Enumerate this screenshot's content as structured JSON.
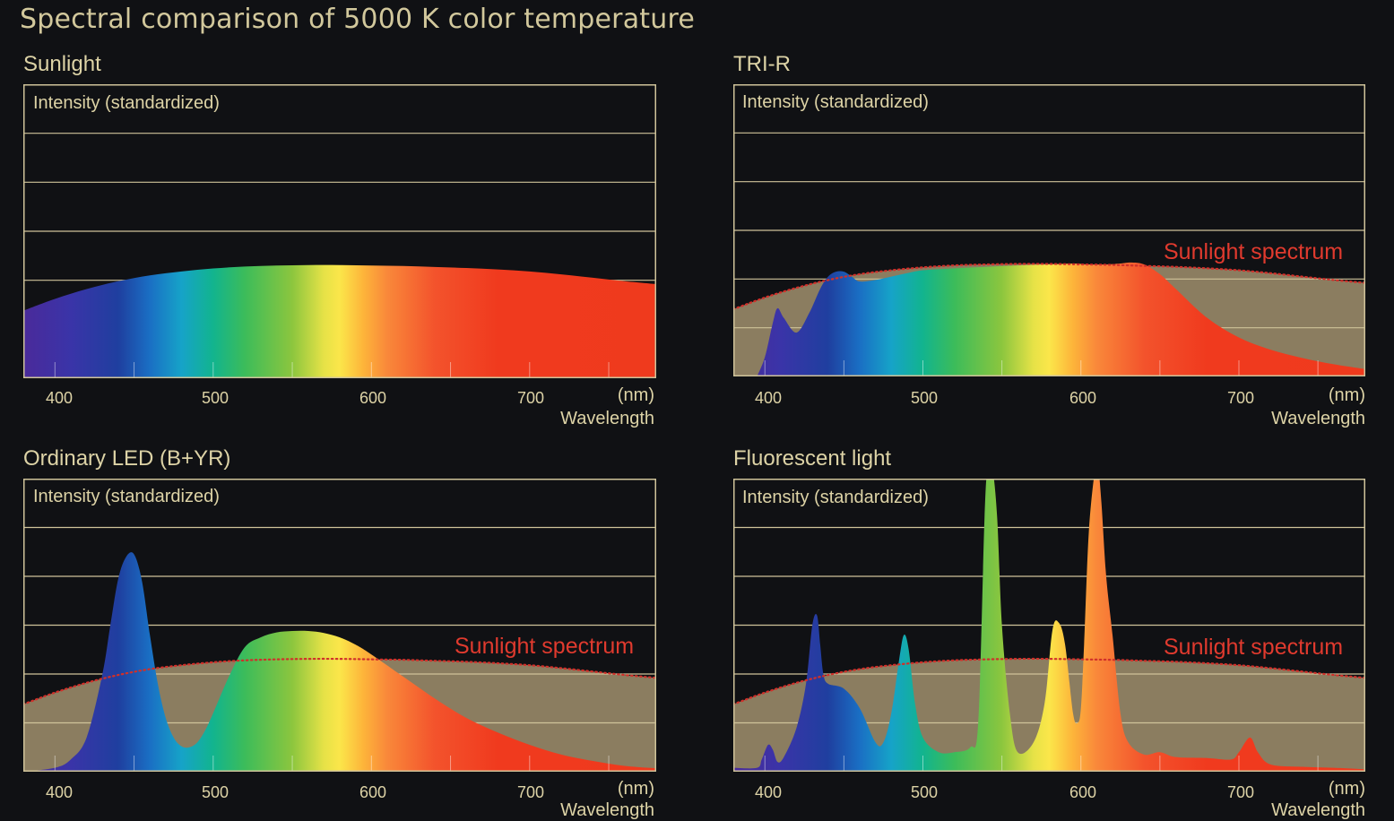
{
  "title": "Spectral comparison of 5000 K color temperature",
  "colors": {
    "background": "#101114",
    "text": "#ddd3a6",
    "frame": "#cfc39a",
    "sunlight_fill": "#8b7d60",
    "reference_line": "#d0302a",
    "reference_label": "#e03a2e"
  },
  "chart_data": [
    {
      "type": "area",
      "title": "Sunlight",
      "ylabel": "Intensity (standardized)",
      "xlabel": "Wavelength",
      "xunit": "(nm)",
      "xlim": [
        380,
        780
      ],
      "ylim": [
        0,
        6
      ],
      "xticks": [
        400,
        500,
        600,
        700
      ],
      "grid": true,
      "fill": "spectral",
      "x": [
        380,
        400,
        420,
        440,
        460,
        480,
        500,
        520,
        540,
        560,
        580,
        600,
        620,
        640,
        660,
        680,
        700,
        720,
        740,
        760,
        780
      ],
      "y": [
        1.38,
        1.62,
        1.82,
        1.98,
        2.1,
        2.18,
        2.24,
        2.28,
        2.3,
        2.31,
        2.31,
        2.3,
        2.29,
        2.27,
        2.25,
        2.22,
        2.18,
        2.12,
        2.05,
        1.98,
        1.92
      ]
    },
    {
      "type": "area",
      "title": "TRI-R",
      "ylabel": "Intensity (standardized)",
      "xlabel": "Wavelength",
      "xunit": "(nm)",
      "xlim": [
        380,
        780
      ],
      "ylim": [
        0,
        6
      ],
      "xticks": [
        400,
        500,
        600,
        700
      ],
      "grid": true,
      "fill": "spectral",
      "reference": {
        "name": "Sunlight spectrum",
        "x": [
          380,
          400,
          420,
          440,
          460,
          480,
          500,
          520,
          540,
          560,
          580,
          600,
          620,
          640,
          660,
          680,
          700,
          720,
          740,
          760,
          780
        ],
        "y": [
          1.38,
          1.62,
          1.82,
          1.98,
          2.1,
          2.18,
          2.24,
          2.28,
          2.3,
          2.31,
          2.31,
          2.3,
          2.29,
          2.27,
          2.25,
          2.22,
          2.18,
          2.12,
          2.05,
          1.98,
          1.92
        ]
      },
      "x": [
        395,
        400,
        405,
        408,
        412,
        420,
        428,
        435,
        440,
        445,
        450,
        455,
        460,
        470,
        480,
        490,
        500,
        520,
        540,
        560,
        580,
        595,
        605,
        615,
        625,
        632,
        640,
        650,
        660,
        680,
        700,
        720,
        740,
        760,
        780
      ],
      "y": [
        0.0,
        0.4,
        1.1,
        1.4,
        1.2,
        0.9,
        1.3,
        1.8,
        2.05,
        2.15,
        2.15,
        2.05,
        1.95,
        1.98,
        2.05,
        2.12,
        2.18,
        2.22,
        2.25,
        2.28,
        2.3,
        2.32,
        2.3,
        2.3,
        2.32,
        2.34,
        2.3,
        2.1,
        1.8,
        1.2,
        0.8,
        0.55,
        0.38,
        0.25,
        0.15
      ]
    },
    {
      "type": "area",
      "title": "Ordinary LED (B+YR)",
      "ylabel": "Intensity (standardized)",
      "xlabel": "Wavelength",
      "xunit": "(nm)",
      "xlim": [
        380,
        780
      ],
      "ylim": [
        0,
        6
      ],
      "xticks": [
        400,
        500,
        600,
        700
      ],
      "grid": true,
      "fill": "spectral",
      "reference": {
        "name": "Sunlight spectrum",
        "x": [
          380,
          400,
          420,
          440,
          460,
          480,
          500,
          520,
          540,
          560,
          580,
          600,
          620,
          640,
          660,
          680,
          700,
          720,
          740,
          760,
          780
        ],
        "y": [
          1.38,
          1.62,
          1.82,
          1.98,
          2.1,
          2.18,
          2.24,
          2.28,
          2.3,
          2.31,
          2.31,
          2.3,
          2.29,
          2.27,
          2.25,
          2.22,
          2.18,
          2.12,
          2.05,
          1.98,
          1.92
        ]
      },
      "x": [
        380,
        400,
        410,
        420,
        430,
        435,
        440,
        445,
        450,
        455,
        460,
        465,
        470,
        475,
        480,
        485,
        490,
        495,
        500,
        510,
        520,
        530,
        540,
        550,
        560,
        570,
        580,
        590,
        600,
        620,
        640,
        660,
        680,
        700,
        720,
        740,
        760,
        780
      ],
      "y": [
        0.0,
        0.08,
        0.25,
        0.7,
        2.0,
        3.0,
        3.95,
        4.4,
        4.45,
        3.9,
        2.8,
        1.8,
        1.1,
        0.7,
        0.52,
        0.5,
        0.6,
        0.85,
        1.2,
        1.95,
        2.55,
        2.75,
        2.85,
        2.88,
        2.88,
        2.84,
        2.75,
        2.6,
        2.4,
        1.95,
        1.5,
        1.1,
        0.8,
        0.55,
        0.35,
        0.22,
        0.12,
        0.07
      ]
    },
    {
      "type": "area",
      "title": "Fluorescent light",
      "ylabel": "Intensity (standardized)",
      "xlabel": "Wavelength",
      "xunit": "(nm)",
      "xlim": [
        380,
        780
      ],
      "ylim": [
        0,
        6
      ],
      "xticks": [
        400,
        500,
        600,
        700
      ],
      "grid": true,
      "fill": "spectral",
      "reference": {
        "name": "Sunlight spectrum",
        "x": [
          380,
          400,
          420,
          440,
          460,
          480,
          500,
          520,
          540,
          560,
          580,
          600,
          620,
          640,
          660,
          680,
          700,
          720,
          740,
          760,
          780
        ],
        "y": [
          1.38,
          1.62,
          1.82,
          1.98,
          2.1,
          2.18,
          2.24,
          2.28,
          2.3,
          2.31,
          2.31,
          2.3,
          2.29,
          2.27,
          2.25,
          2.22,
          2.18,
          2.12,
          2.05,
          1.98,
          1.92
        ]
      },
      "x": [
        380,
        395,
        398,
        402,
        405,
        408,
        412,
        420,
        426,
        430,
        433,
        435,
        437,
        440,
        450,
        460,
        470,
        475,
        480,
        485,
        488,
        491,
        495,
        500,
        510,
        520,
        530,
        535,
        539,
        541,
        544,
        547,
        550,
        555,
        560,
        570,
        577,
        582,
        586,
        590,
        595,
        598,
        600,
        602,
        605,
        609,
        611,
        613,
        616,
        620,
        625,
        630,
        640,
        650,
        660,
        680,
        695,
        700,
        707,
        712,
        720,
        740,
        760,
        780
      ],
      "y": [
        0.08,
        0.08,
        0.25,
        0.55,
        0.45,
        0.2,
        0.3,
        0.9,
        1.8,
        3.0,
        3.2,
        2.6,
        2.0,
        1.8,
        1.7,
        1.3,
        0.6,
        0.6,
        1.2,
        2.3,
        2.8,
        2.5,
        1.4,
        0.7,
        0.4,
        0.4,
        0.5,
        1.0,
        5.2,
        6.2,
        6.2,
        5.2,
        3.0,
        1.2,
        0.4,
        0.6,
        1.4,
        2.9,
        3.05,
        2.6,
        1.2,
        1.0,
        1.3,
        2.6,
        4.9,
        6.2,
        6.2,
        5.5,
        4.0,
        2.8,
        1.2,
        0.6,
        0.35,
        0.4,
        0.3,
        0.28,
        0.25,
        0.4,
        0.7,
        0.4,
        0.15,
        0.1,
        0.08,
        0.05
      ]
    }
  ]
}
